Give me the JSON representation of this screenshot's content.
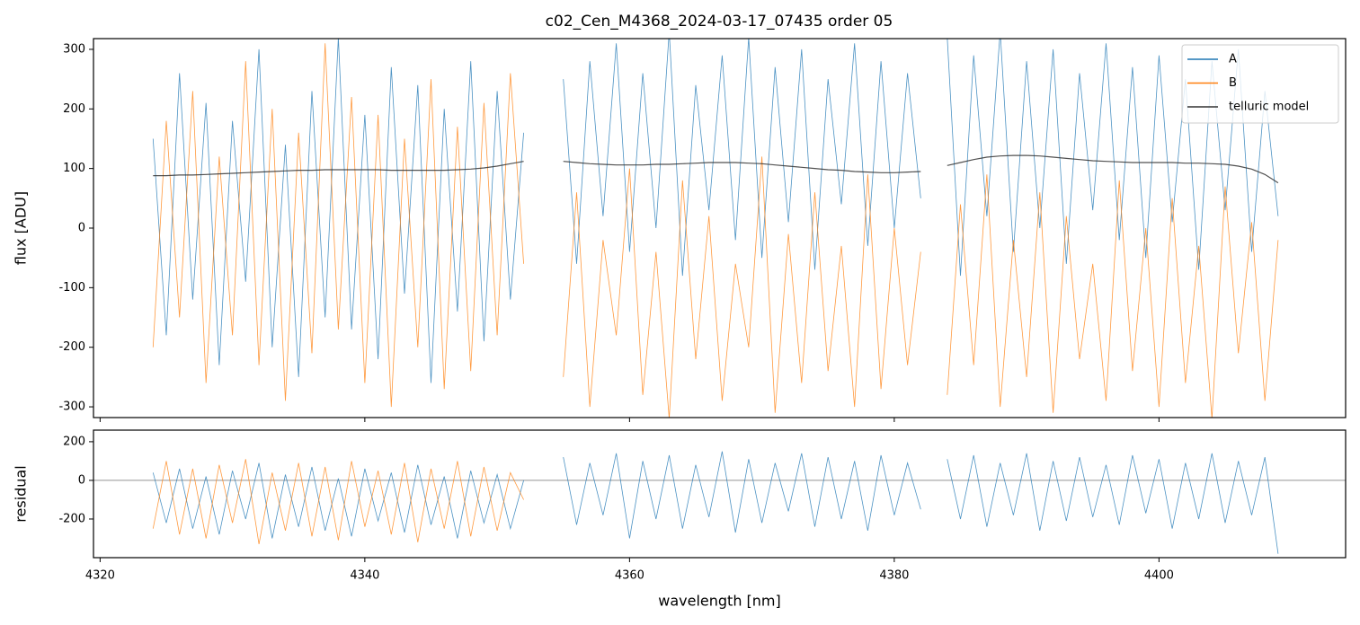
{
  "chart_data": [
    {
      "type": "line",
      "title": "c02_Cen_M4368_2024-03-17_07435  order 05",
      "ylabel": "flux [ADU]",
      "xlim": [
        4319.5,
        4414.1
      ],
      "ylim": [
        -318,
        318
      ],
      "yticks": [
        -300,
        -200,
        -100,
        0,
        100,
        200,
        300
      ],
      "xticks": [
        4320,
        4340,
        4360,
        4380,
        4400
      ],
      "legend": "upper right",
      "x": [
        4324,
        4325,
        4326,
        4327,
        4328,
        4329,
        4330,
        4331,
        4332,
        4333,
        4334,
        4335,
        4336,
        4337,
        4338,
        4339,
        4340,
        4341,
        4342,
        4343,
        4344,
        4345,
        4346,
        4347,
        4348,
        4349,
        4350,
        4351,
        4352,
        4353.5,
        4355,
        4356,
        4357,
        4358,
        4359,
        4360,
        4361,
        4362,
        4363,
        4364,
        4365,
        4366,
        4367,
        4368,
        4369,
        4370,
        4371,
        4372,
        4373,
        4374,
        4375,
        4376,
        4377,
        4378,
        4379,
        4380,
        4381,
        4382,
        4383,
        4384,
        4385,
        4386,
        4387,
        4388,
        4389,
        4390,
        4391,
        4392,
        4393,
        4394,
        4395,
        4396,
        4397,
        4398,
        4399,
        4400,
        4401,
        4402,
        4403,
        4404,
        4405,
        4406,
        4407,
        4408,
        4409
      ],
      "series": [
        {
          "name": "A",
          "color": "#1f77b4",
          "values": [
            150,
            -180,
            260,
            -120,
            210,
            -230,
            180,
            -90,
            300,
            -200,
            140,
            -250,
            230,
            -150,
            320,
            -170,
            190,
            -220,
            270,
            -110,
            240,
            -260,
            200,
            -140,
            280,
            -190,
            230,
            -120,
            160,
            null,
            250,
            -60,
            280,
            20,
            310,
            -40,
            260,
            0,
            330,
            -80,
            240,
            30,
            290,
            -20,
            320,
            -50,
            270,
            10,
            300,
            -70,
            250,
            40,
            310,
            -30,
            280,
            0,
            260,
            50,
            null,
            320,
            -80,
            290,
            20,
            330,
            -40,
            280,
            0,
            300,
            -60,
            260,
            30,
            310,
            -20,
            270,
            -50,
            290,
            10,
            250,
            -70,
            280,
            30,
            300,
            -40,
            230,
            20
          ]
        },
        {
          "name": "B",
          "color": "#ff7f0e",
          "values": [
            -200,
            180,
            -150,
            230,
            -260,
            120,
            -180,
            280,
            -230,
            200,
            -290,
            160,
            -210,
            310,
            -170,
            220,
            -260,
            190,
            -300,
            150,
            -200,
            250,
            -270,
            170,
            -240,
            210,
            -180,
            260,
            -60,
            null,
            -250,
            60,
            -300,
            -20,
            -180,
            100,
            -280,
            -40,
            -320,
            80,
            -220,
            20,
            -290,
            -60,
            -200,
            120,
            -310,
            -10,
            -260,
            60,
            -240,
            -30,
            -300,
            90,
            -270,
            0,
            -230,
            -40,
            null,
            -280,
            40,
            -230,
            90,
            -300,
            -20,
            -250,
            60,
            -310,
            20,
            -220,
            -60,
            -290,
            80,
            -240,
            0,
            -300,
            50,
            -260,
            -30,
            -320,
            70,
            -210,
            10,
            -290,
            -20
          ]
        },
        {
          "name": "telluric model",
          "color": "#333333",
          "values": [
            88,
            88,
            89,
            89,
            90,
            91,
            92,
            93,
            94,
            95,
            96,
            97,
            97,
            98,
            98,
            98,
            98,
            98,
            97,
            97,
            97,
            97,
            97,
            98,
            99,
            101,
            104,
            108,
            112,
            null,
            112,
            110,
            108,
            107,
            106,
            106,
            106,
            107,
            107,
            108,
            109,
            110,
            110,
            110,
            109,
            108,
            106,
            104,
            102,
            100,
            98,
            97,
            95,
            94,
            93,
            93,
            94,
            95,
            null,
            105,
            110,
            115,
            119,
            121,
            122,
            122,
            121,
            119,
            117,
            115,
            113,
            112,
            111,
            110,
            110,
            110,
            110,
            109,
            109,
            108,
            107,
            104,
            99,
            90,
            76
          ]
        }
      ]
    },
    {
      "type": "line",
      "ylabel": "residual",
      "xlabel": "wavelength [nm]",
      "xlim": [
        4319.5,
        4414.1
      ],
      "ylim": [
        -400,
        260
      ],
      "yticks": [
        -200,
        0,
        200
      ],
      "hline": 0,
      "xticks": [
        4320,
        4340,
        4360,
        4380,
        4400
      ],
      "x": [
        4324,
        4325,
        4326,
        4327,
        4328,
        4329,
        4330,
        4331,
        4332,
        4333,
        4334,
        4335,
        4336,
        4337,
        4338,
        4339,
        4340,
        4341,
        4342,
        4343,
        4344,
        4345,
        4346,
        4347,
        4348,
        4349,
        4350,
        4351,
        4352,
        4353.5,
        4355,
        4356,
        4357,
        4358,
        4359,
        4360,
        4361,
        4362,
        4363,
        4364,
        4365,
        4366,
        4367,
        4368,
        4369,
        4370,
        4371,
        4372,
        4373,
        4374,
        4375,
        4376,
        4377,
        4378,
        4379,
        4380,
        4381,
        4382,
        4383,
        4384,
        4385,
        4386,
        4387,
        4388,
        4389,
        4390,
        4391,
        4392,
        4393,
        4394,
        4395,
        4396,
        4397,
        4398,
        4399,
        4400,
        4401,
        4402,
        4403,
        4404,
        4405,
        4406,
        4407,
        4408,
        4409
      ],
      "series": [
        {
          "color": "#1f77b4",
          "values": [
            40,
            -220,
            60,
            -250,
            20,
            -280,
            50,
            -200,
            90,
            -300,
            30,
            -240,
            70,
            -260,
            10,
            -290,
            60,
            -210,
            40,
            -270,
            80,
            -230,
            20,
            -300,
            50,
            -220,
            30,
            -250,
            0,
            null,
            120,
            -230,
            90,
            -180,
            140,
            -300,
            100,
            -200,
            130,
            -250,
            80,
            -190,
            150,
            -270,
            110,
            -220,
            90,
            -160,
            140,
            -240,
            120,
            -200,
            100,
            -260,
            130,
            -180,
            90,
            -150,
            null,
            110,
            -200,
            130,
            -240,
            90,
            -180,
            140,
            -260,
            100,
            -210,
            120,
            -190,
            80,
            -230,
            130,
            -170,
            110,
            -250,
            90,
            -200,
            140,
            -220,
            100,
            -180,
            120,
            -380
          ]
        },
        {
          "color": "#ff7f0e",
          "values": [
            -250,
            100,
            -280,
            60,
            -300,
            80,
            -220,
            110,
            -330,
            40,
            -260,
            90,
            -290,
            70,
            -310,
            100,
            -240,
            50,
            -280,
            90,
            -320,
            60,
            -250,
            100,
            -290,
            70,
            -260,
            40,
            -100,
            null,
            null,
            null,
            null,
            null,
            null,
            null,
            null,
            null,
            null,
            null,
            null,
            null,
            null,
            null,
            null,
            null,
            null,
            null,
            null,
            null,
            null,
            null,
            null,
            null,
            null,
            null,
            null,
            null,
            null,
            null,
            null,
            null,
            null,
            null,
            null,
            null,
            null,
            null,
            null,
            null,
            null,
            null,
            null,
            null,
            null,
            null,
            null,
            null,
            null,
            null,
            null,
            null,
            null,
            null,
            null
          ]
        }
      ]
    }
  ]
}
